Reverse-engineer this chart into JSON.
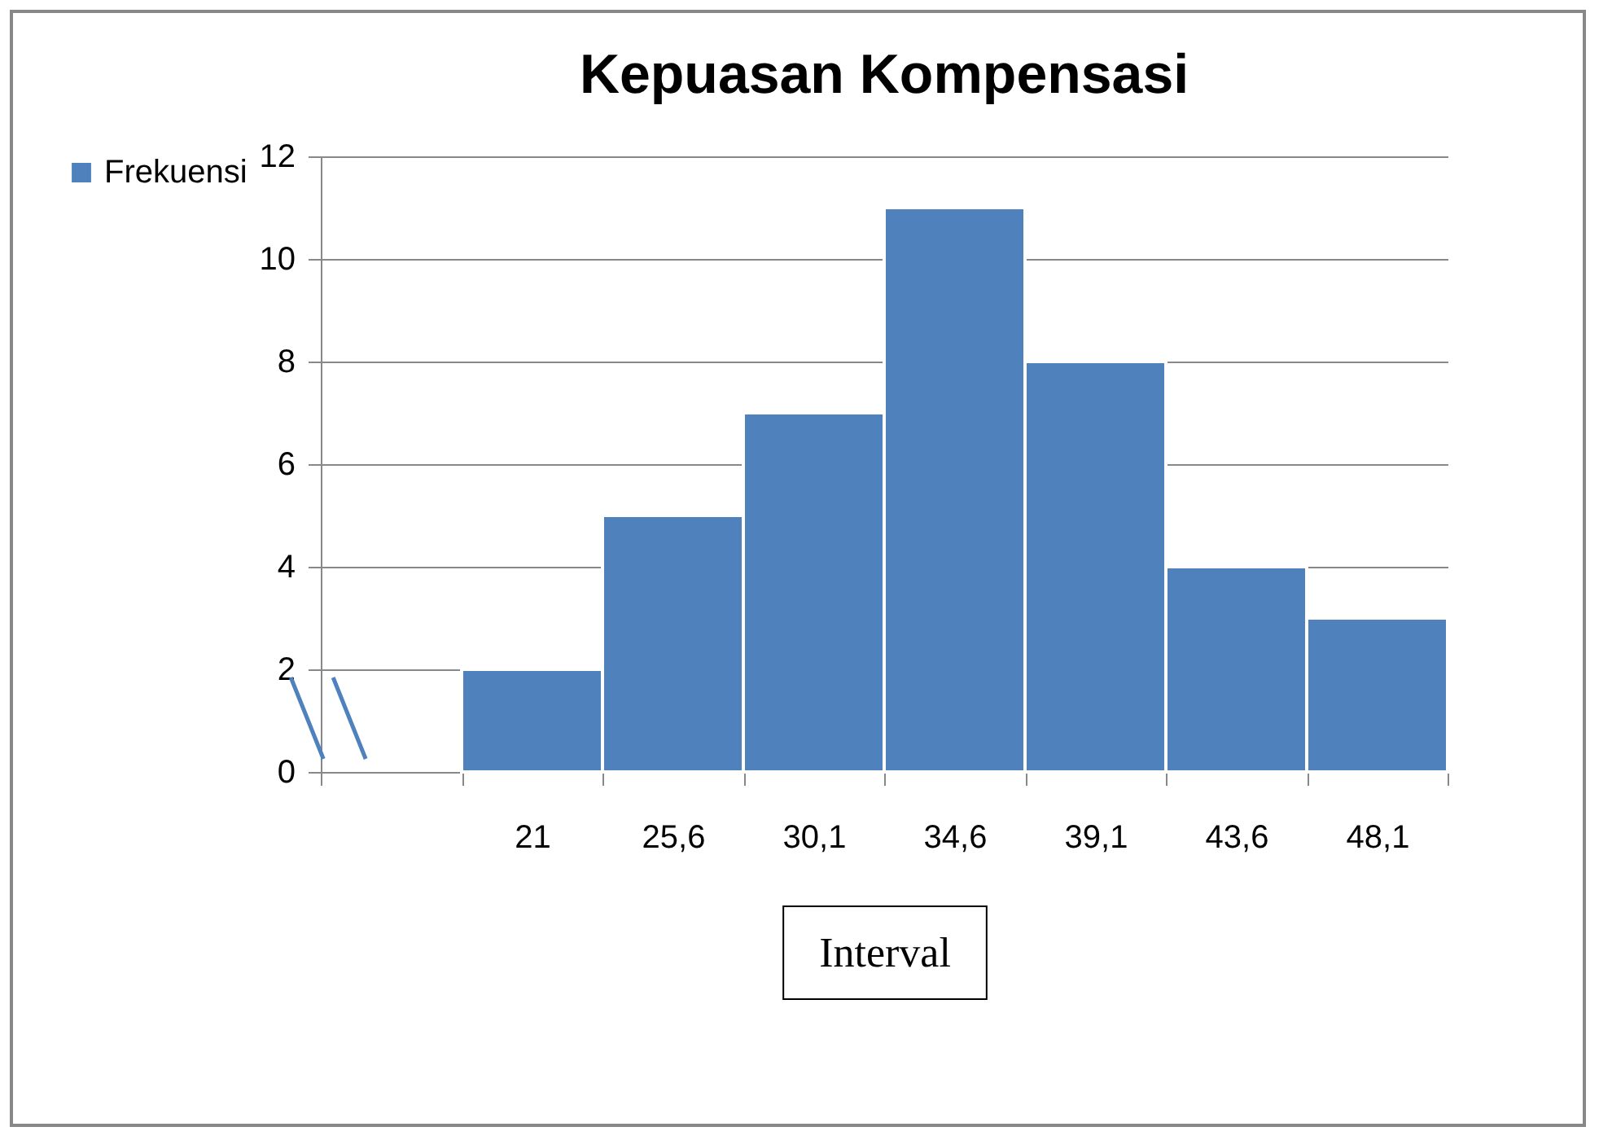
{
  "chart_data": {
    "type": "bar",
    "title": "Kepuasan Kompensasi",
    "xlabel": "Interval",
    "categories": [
      null,
      "21",
      "25,6",
      "30,1",
      "34,6",
      "39,1",
      "43,6",
      "48,1"
    ],
    "series": [
      {
        "name": "Frekuensi",
        "color": "#4f81bd",
        "values": [
          null,
          2,
          5,
          7,
          11,
          8,
          4,
          3
        ]
      }
    ],
    "ylim": [
      0,
      12
    ],
    "yticks": [
      0,
      2,
      4,
      6,
      8,
      10,
      12
    ],
    "grid": "y",
    "legend": "left"
  }
}
